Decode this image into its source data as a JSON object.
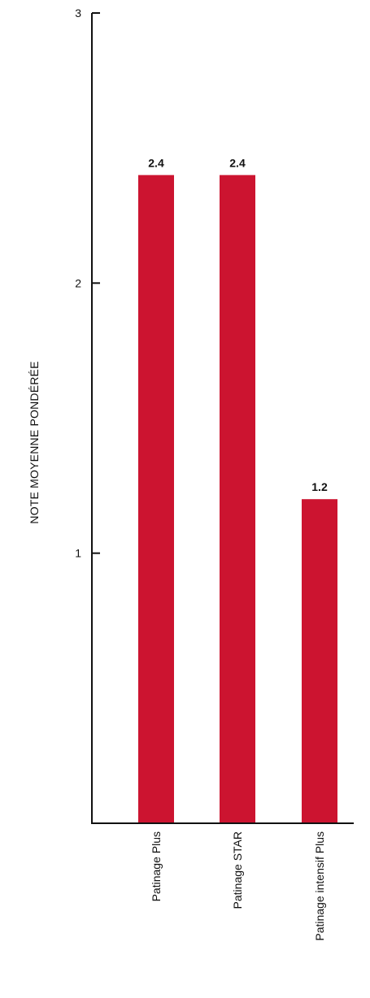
{
  "chart_data": {
    "type": "bar",
    "title": "",
    "xlabel": "",
    "ylabel": "NOTE MOYENNE PONDÉRÉE",
    "categories": [
      "Patinage Plus",
      "Patinage STAR",
      "Patinage intensif Plus"
    ],
    "values": [
      2.4,
      2.4,
      1.2
    ],
    "data_labels": [
      "2.4",
      "2.4",
      "1.2"
    ],
    "ylim": [
      0,
      3
    ],
    "yticks": [
      {
        "value": 1,
        "label": "1"
      },
      {
        "value": 2,
        "label": "2"
      },
      {
        "value": 3,
        "label": "3"
      }
    ],
    "grid": false,
    "legend": "none",
    "bar_color": "#cc1430",
    "axis_color": "#111111"
  }
}
